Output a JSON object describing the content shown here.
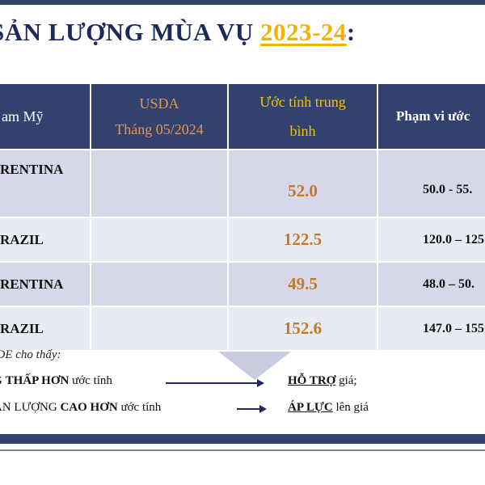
{
  "title": {
    "text": "SẢN LƯỢNG MÙA VỤ ",
    "year": "2023-24",
    "suffix": ":"
  },
  "table": {
    "headers": {
      "col1": "am Mỹ",
      "col2_line1": "USDA",
      "col2_line2": "Tháng 05/2024",
      "col3_line1": "Ước tính trung",
      "col3_line2": "bình",
      "col4": "Phạm vi ước"
    },
    "rows": [
      {
        "name": "RENTINA",
        "usda": "",
        "avg": "52.0",
        "range": "50.0 - 55."
      },
      {
        "name": "RAZIL",
        "usda": "",
        "avg": "122.5",
        "range": "120.0 – 125"
      },
      {
        "name": "RENTINA",
        "usda": "",
        "avg": "49.5",
        "range": "48.0 – 50."
      },
      {
        "name": "RAZIL",
        "usda": "",
        "avg": "152.6",
        "range": "147.0 – 155"
      }
    ]
  },
  "notes": {
    "intro": "SDE cho thấy:",
    "line1": {
      "pre": "G ",
      "bold": "THẤP HƠN",
      "post": " ước tính",
      "result_bold": "HỖ TRỢ",
      "result_post": " giá;"
    },
    "line2": {
      "pre": "ẢN LƯỢNG ",
      "bold": "CAO HƠN",
      "post": " ước tính",
      "result_bold": "ÁP LỰC",
      "result_post": " lên giá"
    }
  },
  "colors": {
    "navy": "#33416f",
    "orange": "#c5772c",
    "gold": "#f0b400",
    "row_dark": "#d6d8e8",
    "row_light": "#e9ebf3"
  }
}
